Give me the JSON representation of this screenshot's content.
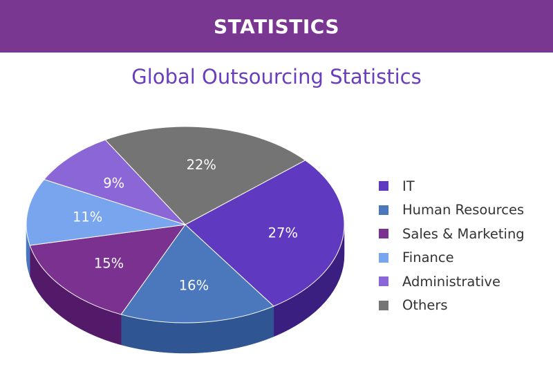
{
  "header": {
    "title": "STATISTICS"
  },
  "colors": {
    "header_bg": "#7a3791",
    "title": "#6a3cc0"
  },
  "chart_data": {
    "type": "pie",
    "title": "Global Outsourcing Statistics",
    "legend_position": "right",
    "slices": [
      {
        "label": "IT",
        "value": 27,
        "display": "27%",
        "color": "#5f3ac0",
        "side_color": "#3a1e80"
      },
      {
        "label": "Human Resources",
        "value": 16,
        "display": "16%",
        "color": "#4b78bd",
        "side_color": "#2f5593"
      },
      {
        "label": "Sales & Marketing",
        "value": 15,
        "display": "15%",
        "color": "#7a3190",
        "side_color": "#541a6a"
      },
      {
        "label": "Finance",
        "value": 11,
        "display": "11%",
        "color": "#78a5ee",
        "side_color": "#4a77c0"
      },
      {
        "label": "Administrative",
        "value": 9,
        "display": "9%",
        "color": "#8a66d6",
        "side_color": "#5d3fa8"
      },
      {
        "label": "Others",
        "value": 22,
        "display": "22%",
        "color": "#747474",
        "side_color": "#4e4e4e"
      }
    ]
  }
}
